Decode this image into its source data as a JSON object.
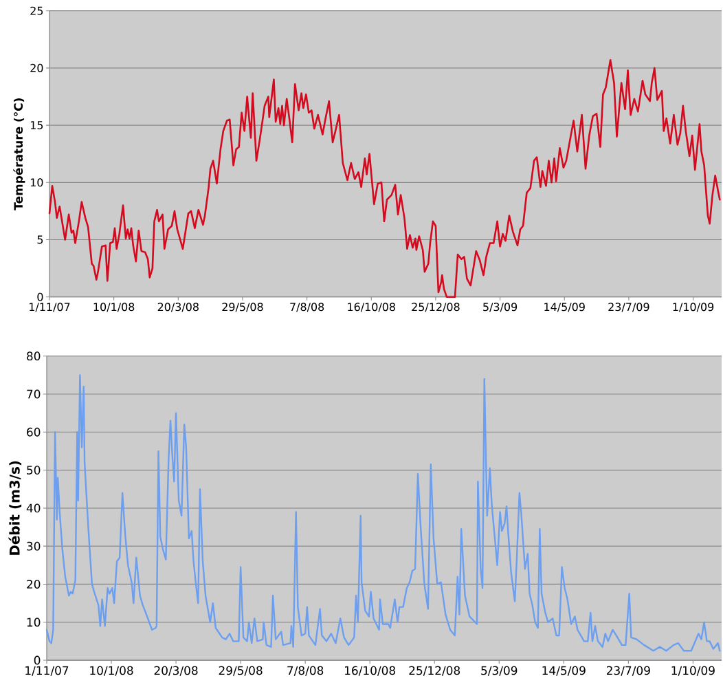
{
  "chart_data": [
    {
      "type": "line",
      "ylabel": "Température (°C)",
      "x": [
        "2007-11-01",
        "2007-11-04",
        "2007-11-07",
        "2007-11-09",
        "2007-11-12",
        "2007-11-18",
        "2007-11-22",
        "2007-11-25",
        "2007-11-27",
        "2007-11-29",
        "2007-12-03",
        "2007-12-06",
        "2007-12-10",
        "2007-12-13",
        "2007-12-17",
        "2007-12-19",
        "2007-12-22",
        "2007-12-24",
        "2007-12-28",
        "2008-01-01",
        "2008-01-03",
        "2008-01-06",
        "2008-01-09",
        "2008-01-11",
        "2008-01-13",
        "2008-01-16",
        "2008-01-20",
        "2008-01-23",
        "2008-01-25",
        "2008-01-27",
        "2008-01-29",
        "2008-01-31",
        "2008-02-03",
        "2008-02-06",
        "2008-02-09",
        "2008-02-13",
        "2008-02-16",
        "2008-02-18",
        "2008-02-21",
        "2008-02-23",
        "2008-02-26",
        "2008-02-28",
        "2008-03-03",
        "2008-03-05",
        "2008-03-09",
        "2008-03-13",
        "2008-03-16",
        "2008-03-19",
        "2008-03-25",
        "2008-03-31",
        "2008-04-03",
        "2008-04-07",
        "2008-04-11",
        "2008-04-16",
        "2008-04-18",
        "2008-04-22",
        "2008-04-24",
        "2008-04-27",
        "2008-05-01",
        "2008-05-05",
        "2008-05-08",
        "2008-05-12",
        "2008-05-15",
        "2008-05-19",
        "2008-05-22",
        "2008-05-25",
        "2008-05-28",
        "2008-05-31",
        "2008-06-03",
        "2008-06-07",
        "2008-06-09",
        "2008-06-13",
        "2008-06-17",
        "2008-06-22",
        "2008-06-26",
        "2008-06-27",
        "2008-07-02",
        "2008-07-04",
        "2008-07-07",
        "2008-07-09",
        "2008-07-11",
        "2008-07-13",
        "2008-07-16",
        "2008-07-19",
        "2008-07-22",
        "2008-07-25",
        "2008-07-29",
        "2008-08-01",
        "2008-08-03",
        "2008-08-06",
        "2008-08-09",
        "2008-08-12",
        "2008-08-15",
        "2008-08-19",
        "2008-08-24",
        "2008-08-27",
        "2008-08-31",
        "2008-09-04",
        "2008-09-07",
        "2008-09-11",
        "2008-09-15",
        "2008-09-20",
        "2008-09-24",
        "2008-09-28",
        "2008-10-02",
        "2008-10-05",
        "2008-10-09",
        "2008-10-11",
        "2008-10-14",
        "2008-10-19",
        "2008-10-23",
        "2008-10-27",
        "2008-10-30",
        "2008-11-02",
        "2008-11-07",
        "2008-11-11",
        "2008-11-14",
        "2008-11-17",
        "2008-11-21",
        "2008-11-24",
        "2008-11-27",
        "2008-11-30",
        "2008-12-03",
        "2008-12-04",
        "2008-12-07",
        "2008-12-11",
        "2008-12-13",
        "2008-12-17",
        "2008-12-19",
        "2008-12-22",
        "2008-12-25",
        "2008-12-28",
        "2008-12-31",
        "2009-01-01",
        "2009-01-03",
        "2009-01-06",
        "2009-01-15",
        "2009-01-18",
        "2009-01-22",
        "2009-01-25",
        "2009-01-28",
        "2009-02-01",
        "2009-02-07",
        "2009-02-11",
        "2009-02-15",
        "2009-02-18",
        "2009-02-22",
        "2009-02-26",
        "2009-03-02",
        "2009-03-05",
        "2009-03-08",
        "2009-03-11",
        "2009-03-15",
        "2009-03-19",
        "2009-03-24",
        "2009-03-27",
        "2009-03-30",
        "2009-04-03",
        "2009-04-07",
        "2009-04-11",
        "2009-04-14",
        "2009-04-18",
        "2009-04-20",
        "2009-04-24",
        "2009-04-27",
        "2009-04-30",
        "2009-05-03",
        "2009-05-05",
        "2009-05-09",
        "2009-05-13",
        "2009-05-16",
        "2009-05-21",
        "2009-05-24",
        "2009-05-28",
        "2009-06-02",
        "2009-06-06",
        "2009-06-10",
        "2009-06-14",
        "2009-06-18",
        "2009-06-22",
        "2009-06-25",
        "2009-06-28",
        "2009-07-03",
        "2009-07-07",
        "2009-07-10",
        "2009-07-15",
        "2009-07-19",
        "2009-07-22",
        "2009-07-25",
        "2009-07-29",
        "2009-08-02",
        "2009-08-07",
        "2009-08-10",
        "2009-08-15",
        "2009-08-17",
        "2009-08-20",
        "2009-08-23",
        "2009-08-28",
        "2009-08-30",
        "2009-09-02",
        "2009-09-06",
        "2009-09-10",
        "2009-09-14",
        "2009-09-17",
        "2009-09-20",
        "2009-09-23",
        "2009-09-27",
        "2009-09-30",
        "2009-10-03",
        "2009-10-08",
        "2009-10-10",
        "2009-10-13",
        "2009-10-17",
        "2009-10-19",
        "2009-10-22",
        "2009-10-25",
        "2009-10-28",
        "2009-10-30"
      ],
      "series": [
        {
          "color": "#d40a1e",
          "values": [
            7.3,
            9.7,
            8.3,
            6.9,
            7.9,
            5.0,
            7.2,
            5.6,
            5.8,
            4.7,
            6.6,
            8.3,
            6.9,
            6.1,
            2.9,
            2.7,
            1.5,
            2.3,
            4.4,
            4.5,
            1.4,
            4.7,
            4.8,
            6.0,
            4.2,
            5.5,
            8.0,
            5.1,
            5.9,
            5.1,
            6.0,
            4.5,
            3.1,
            5.8,
            4.0,
            3.9,
            3.3,
            1.7,
            2.5,
            6.6,
            7.6,
            6.6,
            7.2,
            4.2,
            5.9,
            6.2,
            7.5,
            5.9,
            4.2,
            7.3,
            7.5,
            6.0,
            7.6,
            6.3,
            7.1,
            9.5,
            11.2,
            11.9,
            9.9,
            12.9,
            14.5,
            15.4,
            15.5,
            11.5,
            12.9,
            13.1,
            16.1,
            14.5,
            17.5,
            13.9,
            17.8,
            11.9,
            13.9,
            16.7,
            17.5,
            15.7,
            19.0,
            15.3,
            16.5,
            15.1,
            16.7,
            15.0,
            17.3,
            15.5,
            13.5,
            18.6,
            16.3,
            17.8,
            16.5,
            17.7,
            16.1,
            16.3,
            14.7,
            15.9,
            14.2,
            15.5,
            17.1,
            13.5,
            14.5,
            15.9,
            11.7,
            10.2,
            11.7,
            10.3,
            10.9,
            9.6,
            12.1,
            10.7,
            12.5,
            8.1,
            9.9,
            10.0,
            6.6,
            8.5,
            8.9,
            9.8,
            7.2,
            8.9,
            6.9,
            4.2,
            5.4,
            4.3,
            5.1,
            4.1,
            5.3,
            4.1,
            2.2,
            2.9,
            4.7,
            6.6,
            6.2,
            0.4,
            1.3,
            1.9,
            0.7,
            0.0,
            0.0,
            3.7,
            3.3,
            3.5,
            1.6,
            1.0,
            4.0,
            3.2,
            1.9,
            3.5,
            4.7,
            4.7,
            6.6,
            4.4,
            5.5,
            4.9,
            7.1,
            5.7,
            4.5,
            5.9,
            6.2,
            9.1,
            9.5,
            11.9,
            12.2,
            9.6,
            11.0,
            9.7,
            11.9,
            10.0,
            12.1,
            10.1,
            13.0,
            11.3,
            11.9,
            14.1,
            15.4,
            12.7,
            15.9,
            11.2,
            14.1,
            15.8,
            16.0,
            13.1,
            17.7,
            18.3,
            20.7,
            18.7,
            14.0,
            18.7,
            16.4,
            19.8,
            15.9,
            17.3,
            16.2,
            18.9,
            17.7,
            17.1,
            18.7,
            20.0,
            17.2,
            18.0,
            14.5,
            15.6,
            13.4,
            15.9,
            13.3,
            14.3,
            16.7,
            14.5,
            12.3,
            14.1,
            11.1,
            15.1,
            12.7,
            11.5,
            7.1,
            6.4,
            8.9,
            10.6,
            9.3,
            8.5
          ]
        }
      ],
      "xlim": [
        "2007-11-01",
        "2009-11-01"
      ],
      "xticks": [
        {
          "value": "2007-11-01",
          "label": "1/11/07"
        },
        {
          "value": "2008-01-10",
          "label": "10/1/08"
        },
        {
          "value": "2008-03-20",
          "label": "20/3/08"
        },
        {
          "value": "2008-05-29",
          "label": "29/5/08"
        },
        {
          "value": "2008-08-07",
          "label": "7/8/08"
        },
        {
          "value": "2008-10-16",
          "label": "16/10/08"
        },
        {
          "value": "2008-12-25",
          "label": "25/12/08"
        },
        {
          "value": "2009-03-05",
          "label": "5/3/09"
        },
        {
          "value": "2009-05-14",
          "label": "14/5/09"
        },
        {
          "value": "2009-07-23",
          "label": "23/7/09"
        },
        {
          "value": "2009-10-01",
          "label": "1/10/09"
        }
      ],
      "ylim": [
        0,
        25
      ],
      "yticks": [
        0,
        5,
        10,
        15,
        20,
        25
      ],
      "grid": "y"
    },
    {
      "type": "line",
      "ylabel": "Débit (m3/s)",
      "x": [
        "2007-11-01",
        "2007-11-04",
        "2007-11-06",
        "2007-11-08",
        "2007-11-10",
        "2007-11-12",
        "2007-11-13",
        "2007-11-15",
        "2007-11-18",
        "2007-11-21",
        "2007-11-25",
        "2007-11-27",
        "2007-11-29",
        "2007-12-02",
        "2007-12-04",
        "2007-12-05",
        "2007-12-07",
        "2007-12-09",
        "2007-12-11",
        "2007-12-12",
        "2007-12-16",
        "2007-12-20",
        "2007-12-23",
        "2007-12-27",
        "2007-12-29",
        "2007-12-31",
        "2008-01-03",
        "2008-01-06",
        "2008-01-08",
        "2008-01-11",
        "2008-01-13",
        "2008-01-16",
        "2008-01-19",
        "2008-01-22",
        "2008-01-25",
        "2008-01-28",
        "2008-02-01",
        "2008-02-03",
        "2008-02-06",
        "2008-02-10",
        "2008-02-13",
        "2008-02-17",
        "2008-02-23",
        "2008-02-27",
        "2008-02-28",
        "2008-03-01",
        "2008-03-03",
        "2008-03-06",
        "2008-03-09",
        "2008-03-12",
        "2008-03-14",
        "2008-03-16",
        "2008-03-18",
        "2008-03-20",
        "2008-03-23",
        "2008-03-26",
        "2008-03-29",
        "2008-03-31",
        "2008-04-03",
        "2008-04-06",
        "2008-04-08",
        "2008-04-11",
        "2008-04-13",
        "2008-04-15",
        "2008-04-18",
        "2008-04-21",
        "2008-04-26",
        "2008-04-29",
        "2008-05-02",
        "2008-05-09",
        "2008-05-13",
        "2008-05-17",
        "2008-05-21",
        "2008-05-27",
        "2008-05-29",
        "2008-06-01",
        "2008-06-05",
        "2008-06-07",
        "2008-06-10",
        "2008-06-13",
        "2008-06-16",
        "2008-06-22",
        "2008-06-23",
        "2008-06-26",
        "2008-07-01",
        "2008-07-03",
        "2008-07-06",
        "2008-07-12",
        "2008-07-14",
        "2008-07-22",
        "2008-07-23",
        "2008-07-25",
        "2008-07-28",
        "2008-07-30",
        "2008-08-03",
        "2008-08-07",
        "2008-08-09",
        "2008-08-11",
        "2008-08-18",
        "2008-08-23",
        "2008-08-25",
        "2008-08-30",
        "2008-09-04",
        "2008-09-09",
        "2008-09-14",
        "2008-09-18",
        "2008-09-23",
        "2008-09-26",
        "2008-09-29",
        "2008-10-01",
        "2008-10-03",
        "2008-10-06",
        "2008-10-07",
        "2008-10-11",
        "2008-10-15",
        "2008-10-17",
        "2008-10-20",
        "2008-10-26",
        "2008-10-27",
        "2008-10-30",
        "2008-11-05",
        "2008-11-07",
        "2008-11-12",
        "2008-11-15",
        "2008-11-17",
        "2008-11-21",
        "2008-11-25",
        "2008-11-28",
        "2008-12-01",
        "2008-12-04",
        "2008-12-07",
        "2008-12-10",
        "2008-12-14",
        "2008-12-18",
        "2008-12-21",
        "2008-12-24",
        "2008-12-28",
        "2009-01-01",
        "2009-01-06",
        "2009-01-11",
        "2009-01-16",
        "2009-01-19",
        "2009-01-21",
        "2009-01-23",
        "2009-01-27",
        "2009-02-01",
        "2009-02-07",
        "2009-02-09",
        "2009-02-10",
        "2009-02-13",
        "2009-02-15",
        "2009-02-17",
        "2009-02-20",
        "2009-02-23",
        "2009-02-25",
        "2009-03-03",
        "2009-03-06",
        "2009-03-08",
        "2009-03-11",
        "2009-03-13",
        "2009-03-15",
        "2009-03-18",
        "2009-03-22",
        "2009-03-24",
        "2009-03-27",
        "2009-03-29",
        "2009-04-02",
        "2009-04-05",
        "2009-04-07",
        "2009-04-10",
        "2009-04-13",
        "2009-04-16",
        "2009-04-18",
        "2009-04-20",
        "2009-04-24",
        "2009-04-27",
        "2009-05-02",
        "2009-05-06",
        "2009-05-09",
        "2009-05-12",
        "2009-05-15",
        "2009-05-18",
        "2009-05-22",
        "2009-05-26",
        "2009-05-29",
        "2009-06-05",
        "2009-06-09",
        "2009-06-12",
        "2009-06-14",
        "2009-06-17",
        "2009-06-20",
        "2009-06-25",
        "2009-06-28",
        "2009-07-01",
        "2009-07-06",
        "2009-07-10",
        "2009-07-16",
        "2009-07-20",
        "2009-07-24",
        "2009-07-26",
        "2009-08-01",
        "2009-08-09",
        "2009-08-19",
        "2009-08-26",
        "2009-09-02",
        "2009-09-10",
        "2009-09-15",
        "2009-09-21",
        "2009-09-29",
        "2009-10-07",
        "2009-10-10",
        "2009-10-13",
        "2009-10-16",
        "2009-10-19",
        "2009-10-23",
        "2009-10-28",
        "2009-10-30"
      ],
      "series": [
        {
          "color": "#6c9ff0",
          "values": [
            8,
            5,
            4.5,
            8,
            60,
            37,
            48,
            39,
            29,
            22,
            17,
            18,
            17.5,
            21,
            60,
            42,
            75,
            56,
            72,
            52,
            35,
            20,
            17.5,
            14.5,
            9,
            16,
            9,
            19,
            17.5,
            19,
            15,
            26,
            27,
            44,
            33,
            25,
            20.5,
            15,
            27,
            17,
            14.5,
            12,
            8,
            8.5,
            9,
            55,
            32.5,
            29,
            26.5,
            53,
            63,
            54,
            47,
            65,
            42,
            38,
            62,
            56,
            32,
            34,
            26,
            19,
            15,
            45,
            26,
            17,
            10,
            15,
            8.5,
            6,
            5.5,
            7,
            5,
            5,
            24.5,
            6,
            5,
            10,
            4.5,
            11,
            5,
            5.5,
            10,
            4,
            3.5,
            17,
            5.5,
            7.5,
            4,
            4.5,
            9,
            3.5,
            39,
            14,
            6.5,
            7,
            14,
            6.5,
            4,
            13.5,
            6.5,
            5,
            7,
            4.5,
            11,
            6,
            4,
            5,
            6,
            17,
            10,
            38,
            20.5,
            13,
            11.5,
            18,
            11,
            8,
            16,
            9.5,
            9.5,
            8.5,
            16,
            10,
            14,
            14,
            19,
            20.5,
            23.5,
            24,
            49,
            35,
            20,
            13.5,
            51.5,
            32,
            20,
            20.5,
            12,
            8,
            6.5,
            22,
            12,
            34.5,
            17,
            11.5,
            10,
            9.5,
            47,
            24,
            19,
            74,
            38,
            50.5,
            41,
            25,
            39,
            34,
            36,
            40.5,
            33,
            23,
            15.5,
            26,
            44,
            38.5,
            24,
            28,
            17.5,
            14.5,
            10,
            8.5,
            34.5,
            17.5,
            12.5,
            10,
            11,
            6.5,
            6.5,
            24.5,
            19,
            16,
            9.5,
            11.5,
            8,
            5,
            5,
            12.5,
            5,
            9,
            5,
            3.5,
            7,
            5,
            8,
            6.5,
            4,
            4,
            17.5,
            6,
            5.5,
            4,
            2.5,
            3.5,
            2.5,
            4,
            4.5,
            2.5,
            2.5,
            7,
            5.5,
            10,
            5,
            5,
            3,
            4.5,
            2.5
          ]
        }
      ],
      "xlim": [
        "2007-11-01",
        "2009-11-01"
      ],
      "xticks": [
        {
          "value": "2007-11-01",
          "label": "1/11/07"
        },
        {
          "value": "2008-01-10",
          "label": "10/1/08"
        },
        {
          "value": "2008-03-20",
          "label": "20/3/08"
        },
        {
          "value": "2008-05-29",
          "label": "29/5/08"
        },
        {
          "value": "2008-08-07",
          "label": "7/8/08"
        },
        {
          "value": "2008-10-16",
          "label": "16/10/08"
        },
        {
          "value": "2008-12-25",
          "label": "25/12/08"
        },
        {
          "value": "2009-03-05",
          "label": "5/3/09"
        },
        {
          "value": "2009-05-14",
          "label": "14/5/09"
        },
        {
          "value": "2009-07-23",
          "label": "23/7/09"
        },
        {
          "value": "2009-10-01",
          "label": "1/10/09"
        }
      ],
      "ylim": [
        0,
        80
      ],
      "yticks": [
        0,
        10,
        20,
        30,
        40,
        50,
        60,
        70,
        80
      ],
      "grid": "y"
    }
  ]
}
